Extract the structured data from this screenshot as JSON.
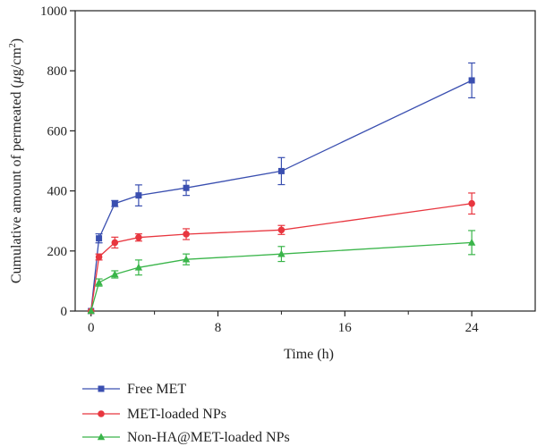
{
  "chart_data": {
    "type": "line",
    "title": "",
    "xlabel": "Time (h)",
    "ylabel_prefix": "Cumulative amount of permeated (",
    "ylabel_unit_mu": "μ",
    "ylabel_unit_rest": "g/cm",
    "ylabel_unit_sup": "2",
    "ylabel_suffix": ")",
    "xlim": [
      -1,
      28
    ],
    "ylim": [
      0,
      1000
    ],
    "xticks": [
      0,
      8,
      16,
      24
    ],
    "xticks_minor": [
      4,
      12,
      20
    ],
    "yticks": [
      0,
      200,
      400,
      600,
      800,
      1000
    ],
    "xtick_labels": [
      "0",
      "8",
      "16",
      "24"
    ],
    "ytick_labels": [
      "0",
      "200",
      "400",
      "600",
      "800",
      "1000"
    ],
    "grid": false,
    "legend_position": "bottom",
    "x": [
      0,
      0.5,
      1.5,
      3,
      6,
      12,
      24
    ],
    "series": [
      {
        "name": "Free MET",
        "color": "#3a4fb0",
        "marker": "square",
        "values": [
          0,
          242,
          358,
          385,
          410,
          466,
          768
        ],
        "errors": [
          0,
          15,
          10,
          35,
          25,
          45,
          58
        ]
      },
      {
        "name": "MET-loaded NPs",
        "color": "#e8363f",
        "marker": "circle",
        "values": [
          0,
          180,
          228,
          245,
          256,
          270,
          358
        ],
        "errors": [
          0,
          10,
          18,
          12,
          18,
          15,
          35
        ]
      },
      {
        "name": "Non-HA@MET-loaded NPs",
        "color": "#3ab54a",
        "marker": "triangle",
        "values": [
          0,
          95,
          122,
          145,
          172,
          190,
          228
        ],
        "errors": [
          0,
          12,
          12,
          25,
          18,
          25,
          40
        ]
      }
    ]
  }
}
